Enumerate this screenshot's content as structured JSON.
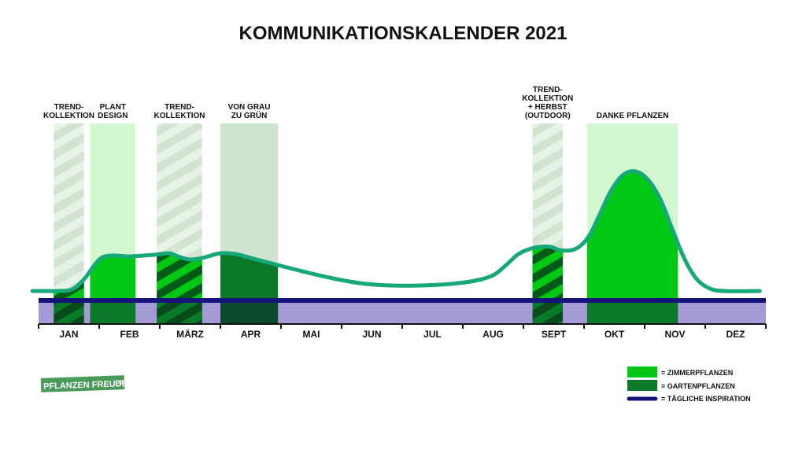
{
  "chart_data": {
    "type": "area",
    "title": "KOMMUNIKATIONSKALENDER 2021",
    "months": [
      "JAN",
      "FEB",
      "MÄRZ",
      "APR",
      "MAI",
      "JUN",
      "JUL",
      "AUG",
      "SEPT",
      "OKT",
      "NOV",
      "DEZ"
    ],
    "campaigns": [
      {
        "label": [
          "TREND-",
          "KOLLEKTION"
        ],
        "start": 0.25,
        "end": 0.75,
        "kind": "garten",
        "hatched": true,
        "level": 0.25
      },
      {
        "label": [
          "PLANT",
          "DESIGN"
        ],
        "start": 0.85,
        "end": 1.6,
        "kind": "zimmer",
        "hatched": false,
        "level": 0.35
      },
      {
        "label": [
          "TREND-",
          "KOLLEKTION"
        ],
        "start": 1.95,
        "end": 2.7,
        "kind": "garten",
        "hatched": true,
        "level": 0.38
      },
      {
        "label": [
          "VON GRAU",
          "ZU GRÜN"
        ],
        "start": 3.0,
        "end": 3.95,
        "kind": "garten",
        "hatched": false,
        "level": 0.38
      },
      {
        "label": [
          "TREND-",
          "KOLLEKTION",
          "+ HERBST",
          "(OUTDOOR)"
        ],
        "start": 8.15,
        "end": 8.65,
        "kind": "garten",
        "hatched": true,
        "level": 0.45
      },
      {
        "label": [
          "DANKE PFLANZEN"
        ],
        "start": 9.05,
        "end": 10.55,
        "kind": "zimmer",
        "hatched": false,
        "level": 1.0
      }
    ],
    "curve": {
      "x": [
        -0.1,
        0.3,
        0.55,
        0.75,
        1.0,
        1.2,
        1.5,
        1.9,
        2.15,
        2.3,
        2.5,
        2.7,
        3.0,
        3.25,
        3.5,
        3.8,
        4.2,
        4.8,
        5.3,
        5.8,
        6.3,
        6.8,
        7.2,
        7.5,
        7.7,
        7.9,
        8.05,
        8.25,
        8.45,
        8.6,
        8.8,
        8.95,
        9.1,
        9.25,
        9.45,
        9.65,
        9.85,
        10.05,
        10.25,
        10.45,
        10.65,
        10.85,
        11.05,
        11.3,
        11.9
      ],
      "y": [
        0.0,
        0.0,
        0.02,
        0.15,
        0.4,
        0.45,
        0.44,
        0.46,
        0.48,
        0.44,
        0.4,
        0.42,
        0.48,
        0.47,
        0.42,
        0.36,
        0.28,
        0.17,
        0.1,
        0.07,
        0.07,
        0.09,
        0.13,
        0.2,
        0.32,
        0.46,
        0.52,
        0.56,
        0.56,
        0.52,
        0.52,
        0.58,
        0.72,
        0.96,
        1.28,
        1.48,
        1.52,
        1.42,
        1.18,
        0.8,
        0.42,
        0.16,
        0.04,
        0.0,
        0.0
      ]
    },
    "inspiration_baseline": "constant"
  },
  "legend": {
    "zimmer": "= ZIMMERPFLANZEN",
    "garten": "= GARTENPFLANZEN",
    "inspiration": "= TÄGLICHE INSPIRATION"
  },
  "logo": {
    "main": "PFLANZEN FREUDE",
    "suffix": ".DE"
  },
  "colors": {
    "zimmer": "#00c814",
    "garten": "#0a7a28",
    "zimmer_bg": "#d3f7cf",
    "garten_bg": "#cfe4cf",
    "hatch_light": "#bdd6bd",
    "hatch_dark": "#005a18",
    "curve": "#17a87a",
    "band": "#a69ad6",
    "inspiration": "#14147a",
    "logo_bg": "#4a9a5a"
  }
}
